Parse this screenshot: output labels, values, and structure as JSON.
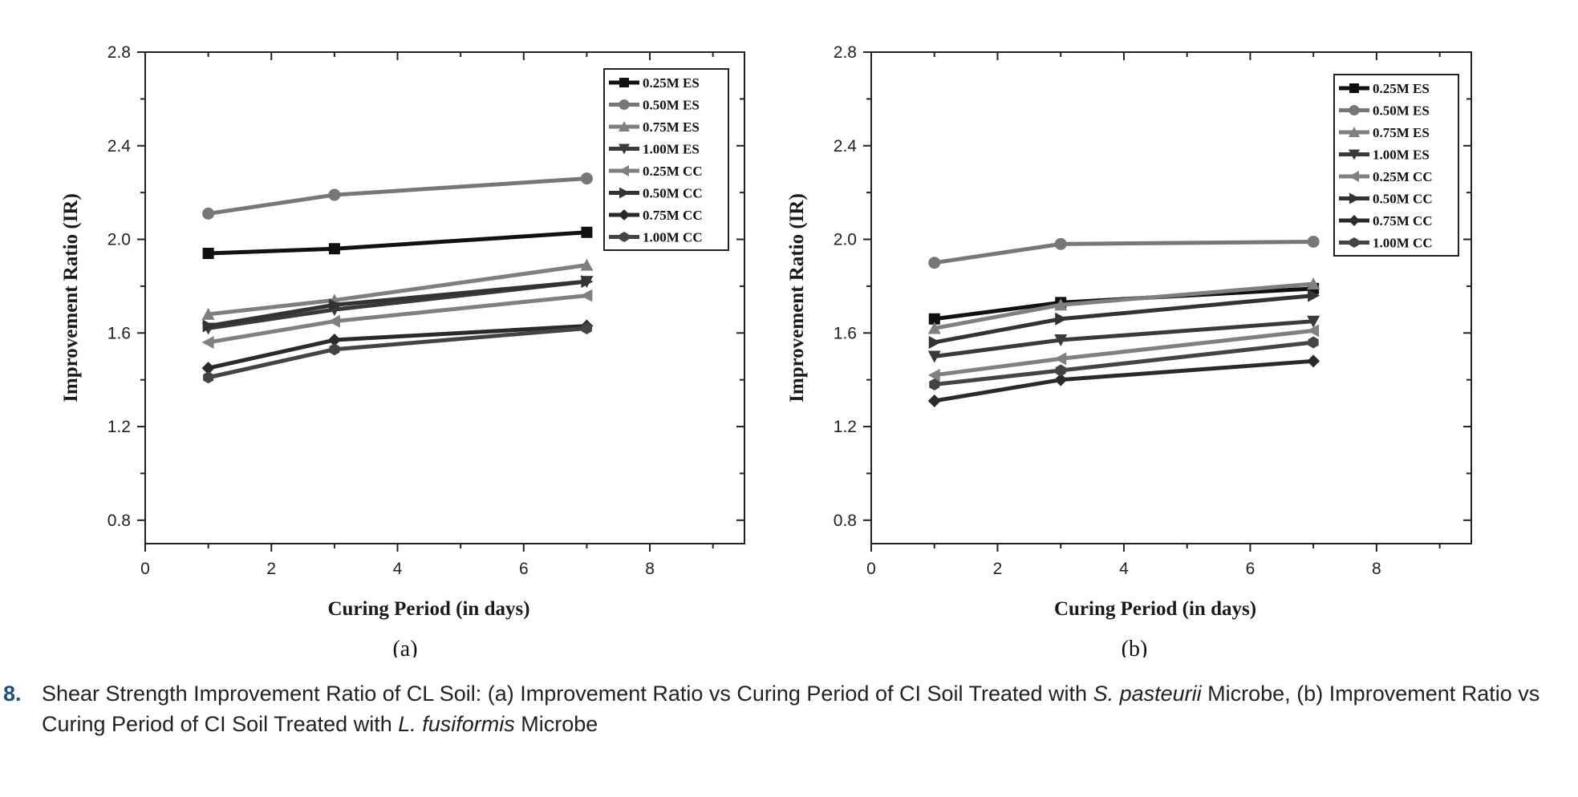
{
  "chart_data": [
    {
      "type": "line",
      "panel_label": "(a)",
      "xlabel": "Curing Period (in days)",
      "ylabel": "Improvement Ratio (IR)",
      "xlim": [
        0,
        9.5
      ],
      "ylim": [
        0.7,
        2.8
      ],
      "xticks": [
        0,
        2,
        4,
        6,
        8
      ],
      "yticks": [
        0.8,
        1.2,
        1.6,
        2.0,
        2.4,
        2.8
      ],
      "x": [
        1,
        3,
        7
      ],
      "legend_position": "top-right",
      "series": [
        {
          "name": "0.25M ES",
          "values": [
            1.94,
            1.96,
            2.03
          ],
          "marker": "square",
          "color": "#111111"
        },
        {
          "name": "0.50M ES",
          "values": [
            2.11,
            2.19,
            2.26
          ],
          "marker": "circle",
          "color": "#777777"
        },
        {
          "name": "0.75M ES",
          "values": [
            1.68,
            1.74,
            1.89
          ],
          "marker": "triangle-up",
          "color": "#7f7f7f"
        },
        {
          "name": "1.00M ES",
          "values": [
            1.62,
            1.7,
            1.82
          ],
          "marker": "triangle-down",
          "color": "#3a3a3a"
        },
        {
          "name": "0.25M CC",
          "values": [
            1.56,
            1.65,
            1.76
          ],
          "marker": "triangle-left",
          "color": "#808080"
        },
        {
          "name": "0.50M CC",
          "values": [
            1.63,
            1.72,
            1.82
          ],
          "marker": "triangle-right",
          "color": "#333333"
        },
        {
          "name": "0.75M CC",
          "values": [
            1.45,
            1.57,
            1.63
          ],
          "marker": "diamond",
          "color": "#2a2a2a"
        },
        {
          "name": "1.00M CC",
          "values": [
            1.41,
            1.53,
            1.62
          ],
          "marker": "hexagon",
          "color": "#444444"
        }
      ]
    },
    {
      "type": "line",
      "panel_label": "(b)",
      "xlabel": "Curing Period (in days)",
      "ylabel": "Improvement Ratio (IR)",
      "xlim": [
        0,
        9.5
      ],
      "ylim": [
        0.7,
        2.8
      ],
      "xticks": [
        0,
        2,
        4,
        6,
        8
      ],
      "yticks": [
        0.8,
        1.2,
        1.6,
        2.0,
        2.4,
        2.8
      ],
      "x": [
        1,
        3,
        7
      ],
      "legend_position": "top-right",
      "series": [
        {
          "name": "0.25M ES",
          "values": [
            1.66,
            1.73,
            1.79
          ],
          "marker": "square",
          "color": "#111111"
        },
        {
          "name": "0.50M ES",
          "values": [
            1.9,
            1.98,
            1.99
          ],
          "marker": "circle",
          "color": "#777777"
        },
        {
          "name": "0.75M ES",
          "values": [
            1.62,
            1.72,
            1.81
          ],
          "marker": "triangle-up",
          "color": "#7f7f7f"
        },
        {
          "name": "1.00M ES",
          "values": [
            1.5,
            1.57,
            1.65
          ],
          "marker": "triangle-down",
          "color": "#3a3a3a"
        },
        {
          "name": "0.25M CC",
          "values": [
            1.42,
            1.49,
            1.61
          ],
          "marker": "triangle-left",
          "color": "#808080"
        },
        {
          "name": "0.50M CC",
          "values": [
            1.56,
            1.66,
            1.76
          ],
          "marker": "triangle-right",
          "color": "#333333"
        },
        {
          "name": "0.75M CC",
          "values": [
            1.31,
            1.4,
            1.48
          ],
          "marker": "diamond",
          "color": "#2a2a2a"
        },
        {
          "name": "1.00M CC",
          "values": [
            1.38,
            1.44,
            1.56
          ],
          "marker": "hexagon",
          "color": "#444444"
        }
      ]
    }
  ],
  "caption": {
    "number": "8.",
    "part1": "Shear Strength Improvement Ratio of CL Soil: (a) Improvement Ratio vs Curing Period of CI Soil Treated with ",
    "species_a": "S. pasteurii",
    "part2": " Microbe, (b) Improvement Ratio vs Curing Period of CI Soil Treated with ",
    "species_b": "L. fusiformis",
    "part3": " Microbe"
  }
}
